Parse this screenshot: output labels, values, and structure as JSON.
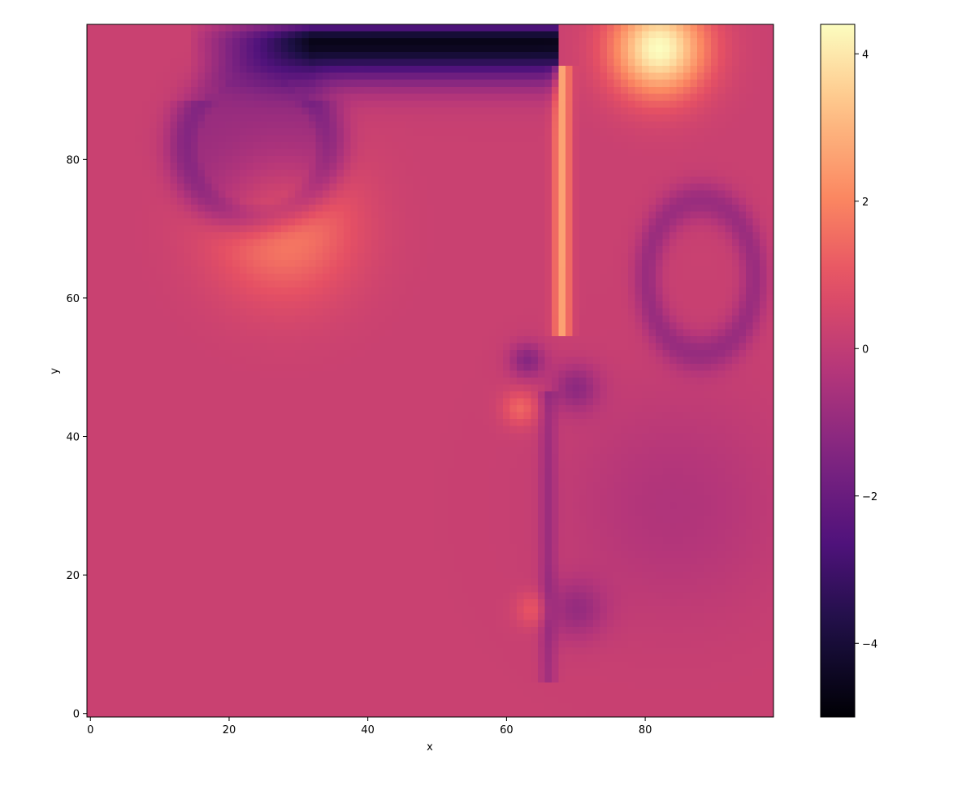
{
  "chart_data": {
    "type": "heatmap",
    "title": "",
    "xlabel": "x",
    "ylabel": "y",
    "xlim": [
      -0.5,
      98.5
    ],
    "ylim": [
      -0.5,
      99.5
    ],
    "x_ticks": [
      "0",
      "20",
      "40",
      "60",
      "80"
    ],
    "y_ticks": [
      "0",
      "20",
      "40",
      "60",
      "80"
    ],
    "colormap": "magma",
    "colorbar": {
      "vmin": -5.0,
      "vmax": 4.4,
      "ticks": [
        "−4",
        "−2",
        "0",
        "2",
        "4"
      ]
    },
    "grid": false,
    "field_features": [
      {
        "kind": "background",
        "value": 0.2
      },
      {
        "kind": "negative-arc-band",
        "center": [
          24,
          82
        ],
        "radius": 10,
        "value": -1.6
      },
      {
        "kind": "negative-streak-top",
        "x_range": [
          14,
          67
        ],
        "y": 97,
        "value": -4.8
      },
      {
        "kind": "positive-blob",
        "center": [
          28,
          70
        ],
        "radius": 12,
        "value": 1.7
      },
      {
        "kind": "positive-blob-top-right",
        "center": [
          82,
          96
        ],
        "radius": 8,
        "value": 4.2
      },
      {
        "kind": "positive-vertical-filament",
        "x": 68,
        "y_range": [
          55,
          93
        ],
        "value": 2.4
      },
      {
        "kind": "negative-vortex",
        "center": [
          63,
          51
        ],
        "radius": 3,
        "value": -1.5
      },
      {
        "kind": "negative-vortex",
        "center": [
          70,
          47
        ],
        "radius": 4,
        "value": -1.3
      },
      {
        "kind": "negative-vertical-filament",
        "x": 66,
        "y_range": [
          5,
          46
        ],
        "value": -0.9
      },
      {
        "kind": "negative-eddy",
        "center": [
          70,
          15
        ],
        "radius": 5,
        "value": -1.1
      },
      {
        "kind": "positive-blob",
        "center": [
          64,
          15
        ],
        "radius": 3,
        "value": 1.0
      },
      {
        "kind": "positive-blob",
        "center": [
          62,
          44
        ],
        "radius": 3,
        "value": 1.2
      },
      {
        "kind": "negative-loop",
        "center": [
          88,
          63
        ],
        "radius": 11,
        "value": -1.1
      },
      {
        "kind": "negative-region-lower-right",
        "center": [
          84,
          30
        ],
        "radius": 18,
        "value": -0.6
      }
    ]
  }
}
